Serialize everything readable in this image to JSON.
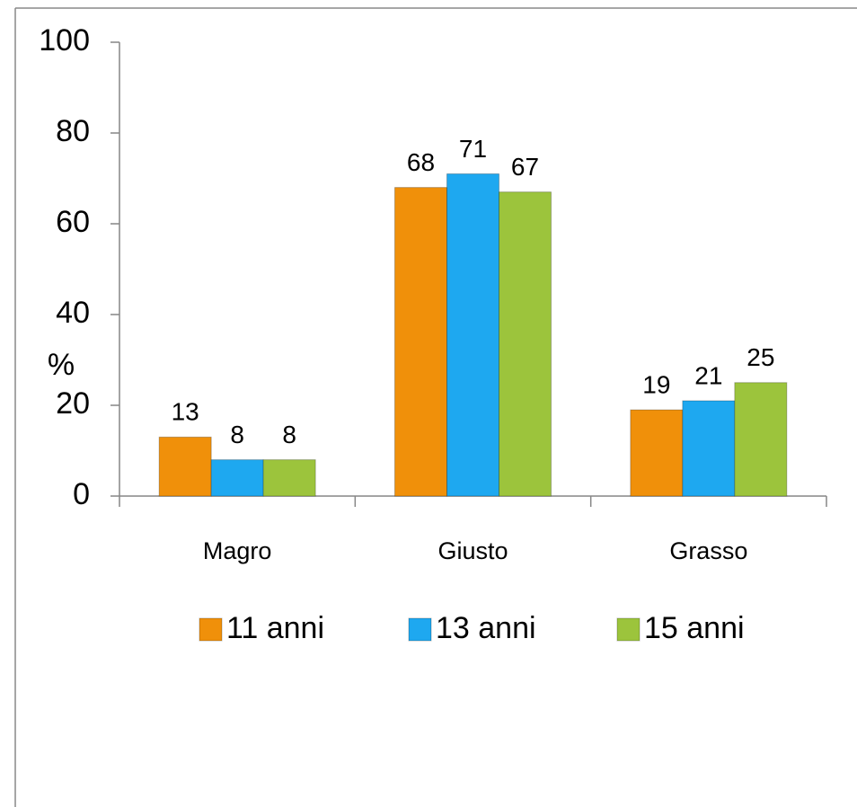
{
  "chart_data": {
    "type": "bar",
    "y_label": "%",
    "categories": [
      "Magro",
      "Giusto",
      "Grasso"
    ],
    "series": [
      {
        "name": "11 anni",
        "color": "#f0900a",
        "values": [
          13,
          68,
          19
        ]
      },
      {
        "name": "13 anni",
        "color": "#1ea8f0",
        "values": [
          8,
          71,
          21
        ]
      },
      {
        "name": "15 anni",
        "color": "#9cc43c",
        "values": [
          8,
          67,
          25
        ]
      }
    ],
    "ylim": [
      0,
      100
    ],
    "yticks": [
      0,
      20,
      40,
      60,
      80,
      100
    ],
    "grid": false,
    "legend": "bottom"
  }
}
